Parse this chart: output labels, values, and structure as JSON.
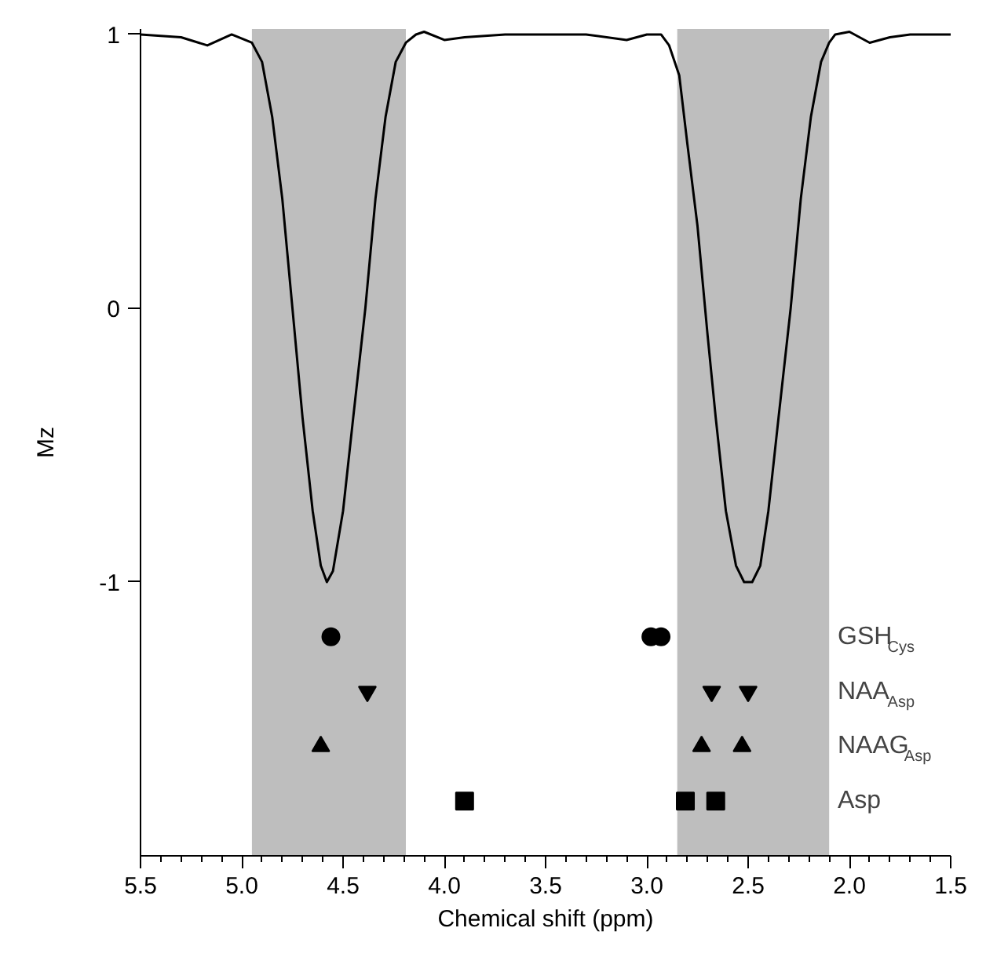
{
  "chart_data": {
    "type": "scatter",
    "xlabel": "Chemical shift (ppm)",
    "ylabel": "Mz",
    "xlim": [
      5.5,
      1.5
    ],
    "ylim": [
      -2.0,
      1.02
    ],
    "xticks": [
      5.5,
      {
        "value": 5.4,
        "label": null
      },
      {
        "value": 5.3,
        "label": null
      },
      {
        "value": 5.2,
        "label": null
      },
      {
        "value": 5.1,
        "label": null
      },
      {
        "value": 5.0,
        "label": "5.0"
      },
      {
        "value": 4.9,
        "label": null
      },
      {
        "value": 4.8,
        "label": null
      },
      {
        "value": 4.7,
        "label": null
      },
      {
        "value": 4.6,
        "label": null
      },
      4.5,
      {
        "value": 4.4,
        "label": null
      },
      {
        "value": 4.3,
        "label": null
      },
      {
        "value": 4.2,
        "label": null
      },
      {
        "value": 4.1,
        "label": null
      },
      {
        "value": 4.0,
        "label": "4.0"
      },
      {
        "value": 3.9,
        "label": null
      },
      {
        "value": 3.8,
        "label": null
      },
      {
        "value": 3.7,
        "label": null
      },
      {
        "value": 3.6,
        "label": null
      },
      3.5,
      {
        "value": 3.4,
        "label": null
      },
      {
        "value": 3.3,
        "label": null
      },
      {
        "value": 3.2,
        "label": null
      },
      {
        "value": 3.1,
        "label": null
      },
      {
        "value": 3.0,
        "label": "3.0"
      },
      {
        "value": 2.9,
        "label": null
      },
      {
        "value": 2.8,
        "label": null
      },
      {
        "value": 2.7,
        "label": null
      },
      {
        "value": 2.6,
        "label": null
      },
      2.5,
      {
        "value": 2.4,
        "label": null
      },
      {
        "value": 2.3,
        "label": null
      },
      {
        "value": 2.2,
        "label": null
      },
      {
        "value": 2.1,
        "label": null
      },
      {
        "value": 2.0,
        "label": "2.0"
      },
      {
        "value": 1.9,
        "label": null
      },
      {
        "value": 1.8,
        "label": null
      },
      {
        "value": 1.7,
        "label": null
      },
      {
        "value": 1.6,
        "label": null
      },
      1.5
    ],
    "yticks": [
      -1,
      0,
      1
    ],
    "grid": false,
    "bands": [
      {
        "axis": "x",
        "from": 4.95,
        "to": 4.19,
        "color": "#bebebe"
      },
      {
        "axis": "x",
        "from": 2.85,
        "to": 2.1,
        "color": "#bebebe"
      }
    ],
    "series": [
      {
        "type": "line",
        "color": "#000000",
        "marker": "none",
        "x": [
          5.5,
          5.3,
          5.17,
          5.05,
          4.95,
          4.9,
          4.85,
          4.8,
          4.75,
          4.7,
          4.65,
          4.61,
          4.58,
          4.55,
          4.5,
          4.45,
          4.39,
          4.34,
          4.29,
          4.24,
          4.19,
          4.14,
          4.1,
          4.0,
          3.9,
          3.7,
          3.5,
          3.3,
          3.1,
          3.0,
          2.93,
          2.89,
          2.84,
          2.8,
          2.75,
          2.7,
          2.66,
          2.61,
          2.56,
          2.52,
          2.48,
          2.44,
          2.4,
          2.35,
          2.29,
          2.24,
          2.19,
          2.14,
          2.1,
          2.07,
          2.0,
          1.9,
          1.8,
          1.7,
          1.5
        ],
        "values": [
          1.0,
          0.99,
          0.96,
          1.0,
          0.97,
          0.9,
          0.7,
          0.4,
          0.0,
          -0.4,
          -0.74,
          -0.94,
          -1.0,
          -0.96,
          -0.74,
          -0.4,
          0.0,
          0.4,
          0.7,
          0.9,
          0.97,
          1.0,
          1.01,
          0.98,
          0.99,
          1.0,
          1.0,
          1.0,
          0.98,
          1.0,
          1.0,
          0.96,
          0.85,
          0.6,
          0.3,
          -0.1,
          -0.4,
          -0.74,
          -0.94,
          -1.0,
          -1.0,
          -0.94,
          -0.74,
          -0.4,
          0.0,
          0.4,
          0.7,
          0.9,
          0.97,
          1.0,
          1.01,
          0.97,
          0.99,
          1.0,
          1.0
        ]
      },
      {
        "name": "GSH$_{Cys}$",
        "color": "#000000",
        "marker": "circle",
        "x": [
          4.56,
          2.98,
          2.93
        ],
        "values": [
          -1.2,
          -1.2,
          -1.2
        ]
      },
      {
        "name": "NAA$_{Asp}$",
        "color": "#000000",
        "marker": "triangle-down",
        "x": [
          4.38,
          2.68,
          2.5
        ],
        "values": [
          -1.4,
          -1.4,
          -1.4
        ]
      },
      {
        "name": "NAAG$_{Asp}$",
        "color": "#000000",
        "marker": "triangle",
        "x": [
          4.61,
          2.73,
          2.53
        ],
        "values": [
          -1.6,
          -1.6,
          -1.6
        ]
      },
      {
        "name": "Asp",
        "color": "#000000",
        "marker": "square",
        "x": [
          3.9,
          2.81,
          2.66
        ],
        "values": [
          -1.8,
          -1.8,
          -1.8
        ]
      }
    ]
  }
}
